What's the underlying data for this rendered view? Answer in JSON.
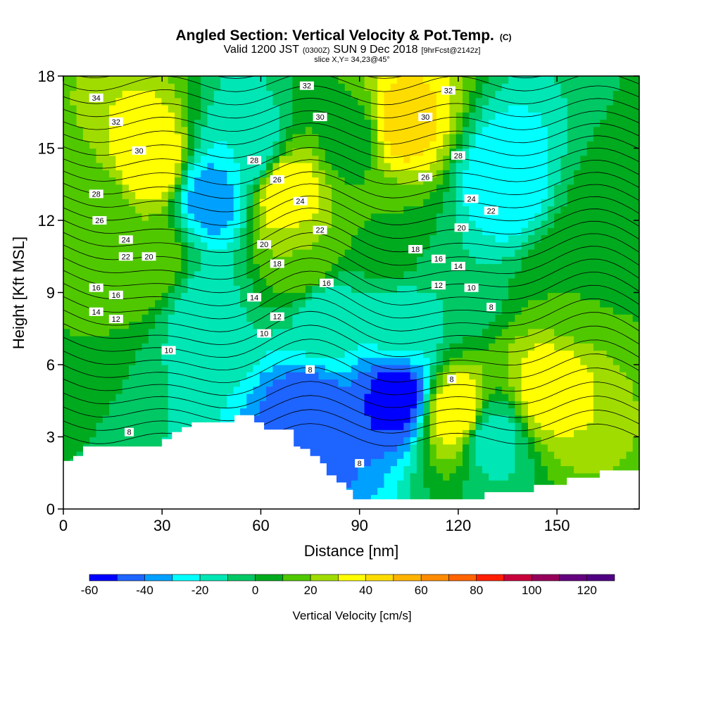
{
  "title": {
    "main": "Angled Section: Vertical Velocity & Pot.Temp.",
    "unit": "(C)",
    "valid_prefix": "Valid 1200 JST",
    "valid_utc": "(0300Z)",
    "valid_date": "SUN 9 Dec 2018",
    "forecast": "[9hrFcst@2142z]",
    "slice": "slice X,Y= 34,23@45°"
  },
  "chart_data": {
    "type": "heatmap",
    "xlabel": "Distance [nm]",
    "ylabel": "Height [Kft MSL]",
    "xlim": [
      0,
      175
    ],
    "ylim": [
      0,
      18
    ],
    "x_ticks": [
      0,
      30,
      60,
      90,
      120,
      150
    ],
    "y_ticks": [
      0,
      3,
      6,
      9,
      12,
      15,
      18
    ],
    "terrain_profile": [
      [
        0,
        2.0
      ],
      [
        3,
        2.0
      ],
      [
        3,
        2.2
      ],
      [
        6,
        2.2
      ],
      [
        6,
        2.6
      ],
      [
        30,
        2.6
      ],
      [
        30,
        2.9
      ],
      [
        33,
        2.9
      ],
      [
        33,
        3.2
      ],
      [
        36,
        3.2
      ],
      [
        36,
        3.4
      ],
      [
        39,
        3.4
      ],
      [
        39,
        3.6
      ],
      [
        52,
        3.6
      ],
      [
        52,
        3.9
      ],
      [
        58,
        3.9
      ],
      [
        58,
        3.6
      ],
      [
        61,
        3.6
      ],
      [
        61,
        3.3
      ],
      [
        70,
        3.3
      ],
      [
        70,
        2.6
      ],
      [
        72,
        2.6
      ],
      [
        72,
        2.5
      ],
      [
        75,
        2.5
      ],
      [
        75,
        2.2
      ],
      [
        78,
        2.2
      ],
      [
        78,
        1.9
      ],
      [
        80,
        1.9
      ],
      [
        80,
        1.4
      ],
      [
        83,
        1.4
      ],
      [
        83,
        1.1
      ],
      [
        86,
        1.1
      ],
      [
        86,
        0.8
      ],
      [
        88,
        0.8
      ],
      [
        88,
        0.4
      ],
      [
        128,
        0.4
      ],
      [
        128,
        0.7
      ],
      [
        143,
        0.7
      ],
      [
        143,
        1.0
      ],
      [
        153,
        1.0
      ],
      [
        153,
        1.3
      ],
      [
        163,
        1.3
      ],
      [
        163,
        1.6
      ],
      [
        175,
        1.6
      ]
    ],
    "colorbar": {
      "label": "Vertical Velocity [cm/s]",
      "tick_labels": [
        "-60",
        "-40",
        "-20",
        "0",
        "20",
        "40",
        "60",
        "80",
        "100",
        "120"
      ],
      "tick_values": [
        -60,
        -40,
        -20,
        0,
        20,
        40,
        60,
        80,
        100,
        120
      ],
      "boundaries": [
        -60,
        -50,
        -40,
        -30,
        -20,
        -10,
        0,
        10,
        20,
        30,
        40,
        50,
        60,
        70,
        80,
        90,
        100,
        110,
        120,
        130
      ],
      "colors": [
        "#0000ff",
        "#1e64ff",
        "#00a0ff",
        "#00ffff",
        "#00e6b4",
        "#00c864",
        "#00aa1e",
        "#50c800",
        "#a0dc00",
        "#ffff00",
        "#ffdc00",
        "#ffb400",
        "#ff8c00",
        "#ff6400",
        "#ff1e00",
        "#c8003c",
        "#96005a",
        "#64007d",
        "#500082"
      ]
    },
    "vertical_velocity_features": [
      {
        "x": 10,
        "y": 12.0,
        "value": 10
      },
      {
        "x": 27,
        "y": 14.5,
        "value": 40
      },
      {
        "x": 26,
        "y": 10.5,
        "value": 20
      },
      {
        "x": 45,
        "y": 13.0,
        "value": -35
      },
      {
        "x": 42,
        "y": 8.0,
        "value": -15
      },
      {
        "x": 56,
        "y": 15.0,
        "value": -20
      },
      {
        "x": 68,
        "y": 13.0,
        "value": 40
      },
      {
        "x": 73,
        "y": 10.5,
        "value": 20
      },
      {
        "x": 75,
        "y": 3.8,
        "value": -50
      },
      {
        "x": 80,
        "y": 8.0,
        "value": -15
      },
      {
        "x": 88,
        "y": 15.5,
        "value": 5
      },
      {
        "x": 101,
        "y": 4.8,
        "value": -55
      },
      {
        "x": 102,
        "y": 7.5,
        "value": -15
      },
      {
        "x": 103,
        "y": 16.0,
        "value": 45
      },
      {
        "x": 100,
        "y": 11.5,
        "value": 10
      },
      {
        "x": 120,
        "y": 4.0,
        "value": 40
      },
      {
        "x": 118,
        "y": 9.5,
        "value": -10
      },
      {
        "x": 134,
        "y": 13.5,
        "value": -30
      },
      {
        "x": 130,
        "y": 3.0,
        "value": -15
      },
      {
        "x": 147,
        "y": 5.0,
        "value": 35
      },
      {
        "x": 153,
        "y": 9.5,
        "value": 10
      },
      {
        "x": 165,
        "y": 12.0,
        "value": 5
      }
    ],
    "contour_levels": [
      8,
      10,
      12,
      14,
      16,
      18,
      20,
      22,
      24,
      26,
      28,
      30,
      32,
      34
    ],
    "contour_labels": [
      {
        "text": "34",
        "x": 10,
        "y": 17.1
      },
      {
        "text": "32",
        "x": 16,
        "y": 16.1
      },
      {
        "text": "30",
        "x": 23,
        "y": 14.9
      },
      {
        "text": "28",
        "x": 10,
        "y": 13.1
      },
      {
        "text": "26",
        "x": 11,
        "y": 12.0
      },
      {
        "text": "24",
        "x": 19,
        "y": 11.2
      },
      {
        "text": "22",
        "x": 19,
        "y": 10.5
      },
      {
        "text": "20",
        "x": 26,
        "y": 10.5
      },
      {
        "text": "16",
        "x": 10,
        "y": 9.2
      },
      {
        "text": "16",
        "x": 16,
        "y": 8.9
      },
      {
        "text": "14",
        "x": 10,
        "y": 8.2
      },
      {
        "text": "12",
        "x": 16,
        "y": 7.9
      },
      {
        "text": "10",
        "x": 32,
        "y": 6.6
      },
      {
        "text": "8",
        "x": 20,
        "y": 3.2
      },
      {
        "text": "32",
        "x": 74,
        "y": 17.6
      },
      {
        "text": "30",
        "x": 78,
        "y": 16.3
      },
      {
        "text": "28",
        "x": 58,
        "y": 14.5
      },
      {
        "text": "26",
        "x": 65,
        "y": 13.7
      },
      {
        "text": "24",
        "x": 72,
        "y": 12.8
      },
      {
        "text": "22",
        "x": 78,
        "y": 11.6
      },
      {
        "text": "20",
        "x": 61,
        "y": 11.0
      },
      {
        "text": "18",
        "x": 65,
        "y": 10.2
      },
      {
        "text": "16",
        "x": 80,
        "y": 9.4
      },
      {
        "text": "14",
        "x": 58,
        "y": 8.8
      },
      {
        "text": "12",
        "x": 65,
        "y": 8.0
      },
      {
        "text": "10",
        "x": 61,
        "y": 7.3
      },
      {
        "text": "8",
        "x": 75,
        "y": 5.8
      },
      {
        "text": "8",
        "x": 90,
        "y": 1.9
      },
      {
        "text": "32",
        "x": 117,
        "y": 17.4
      },
      {
        "text": "30",
        "x": 110,
        "y": 16.3
      },
      {
        "text": "28",
        "x": 120,
        "y": 14.7
      },
      {
        "text": "26",
        "x": 110,
        "y": 13.8
      },
      {
        "text": "24",
        "x": 124,
        "y": 12.9
      },
      {
        "text": "22",
        "x": 130,
        "y": 12.4
      },
      {
        "text": "20",
        "x": 121,
        "y": 11.7
      },
      {
        "text": "18",
        "x": 107,
        "y": 10.8
      },
      {
        "text": "16",
        "x": 114,
        "y": 10.4
      },
      {
        "text": "14",
        "x": 120,
        "y": 10.1
      },
      {
        "text": "12",
        "x": 114,
        "y": 9.3
      },
      {
        "text": "10",
        "x": 124,
        "y": 9.2
      },
      {
        "text": "8",
        "x": 130,
        "y": 8.4
      },
      {
        "text": "8",
        "x": 118,
        "y": 5.4
      }
    ]
  }
}
